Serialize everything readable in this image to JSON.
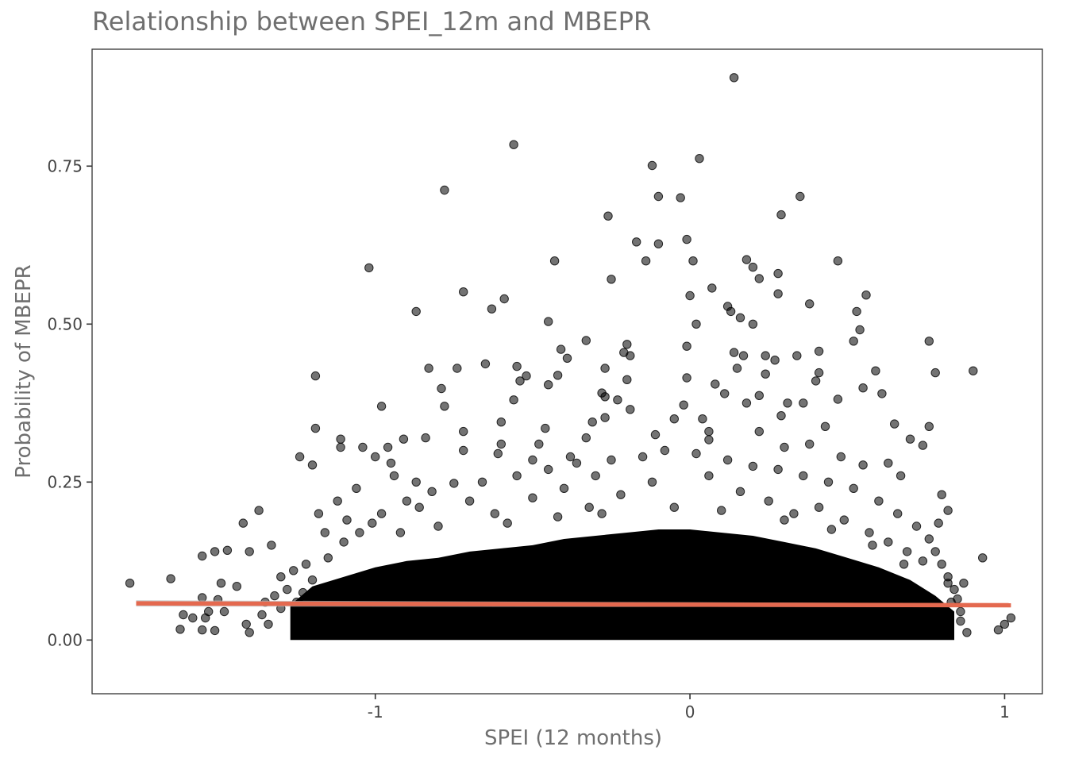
{
  "chart_data": {
    "type": "scatter",
    "title": "Relationship between SPEI_12m and MBEPR",
    "xlabel": "SPEI (12 months)",
    "ylabel": "Probability of MBEPR",
    "xlim": [
      -1.9,
      1.12
    ],
    "ylim": [
      -0.085,
      0.935
    ],
    "xticks": [
      {
        "value": -1,
        "label": "-1"
      },
      {
        "value": 0,
        "label": "0"
      },
      {
        "value": 1,
        "label": "1"
      }
    ],
    "yticks": [
      {
        "value": 0.0,
        "label": "0.00"
      },
      {
        "value": 0.25,
        "label": "0.25"
      },
      {
        "value": 0.5,
        "label": "0.50"
      },
      {
        "value": 0.75,
        "label": "0.75"
      }
    ],
    "grid": false,
    "legend": "none",
    "point_color": "#000000",
    "trend_color": "#e4694f",
    "dense_cloud": {
      "x": [
        -1.27,
        -1.2,
        -1.1,
        -1.0,
        -0.9,
        -0.8,
        -0.7,
        -0.6,
        -0.5,
        -0.4,
        -0.3,
        -0.2,
        -0.1,
        0.0,
        0.1,
        0.2,
        0.3,
        0.4,
        0.5,
        0.6,
        0.7,
        0.78,
        0.84
      ],
      "upper": [
        0.055,
        0.085,
        0.1,
        0.115,
        0.125,
        0.13,
        0.14,
        0.145,
        0.15,
        0.16,
        0.165,
        0.17,
        0.175,
        0.175,
        0.17,
        0.165,
        0.155,
        0.145,
        0.13,
        0.115,
        0.095,
        0.07,
        0.045
      ],
      "lower": 0.0
    },
    "trend": {
      "x": [
        -1.76,
        1.02
      ],
      "y": [
        0.058,
        0.055
      ],
      "ci_low": [
        0.053,
        0.052
      ],
      "ci_high": [
        0.063,
        0.058
      ]
    },
    "points": [
      {
        "x": 0.14,
        "y": 0.89
      },
      {
        "x": -0.56,
        "y": 0.784
      },
      {
        "x": 0.03,
        "y": 0.762
      },
      {
        "x": -0.12,
        "y": 0.751
      },
      {
        "x": -0.78,
        "y": 0.712
      },
      {
        "x": -0.1,
        "y": 0.702
      },
      {
        "x": -0.03,
        "y": 0.7
      },
      {
        "x": 0.35,
        "y": 0.702
      },
      {
        "x": 0.29,
        "y": 0.673
      },
      {
        "x": -0.26,
        "y": 0.671
      },
      {
        "x": -0.1,
        "y": 0.627
      },
      {
        "x": -0.17,
        "y": 0.63
      },
      {
        "x": -0.01,
        "y": 0.634
      },
      {
        "x": -0.43,
        "y": 0.6
      },
      {
        "x": -0.14,
        "y": 0.6
      },
      {
        "x": 0.01,
        "y": 0.6
      },
      {
        "x": 0.18,
        "y": 0.602
      },
      {
        "x": 0.47,
        "y": 0.6
      },
      {
        "x": 0.2,
        "y": 0.59
      },
      {
        "x": -1.02,
        "y": 0.589
      },
      {
        "x": -0.25,
        "y": 0.571
      },
      {
        "x": 0.28,
        "y": 0.58
      },
      {
        "x": 0.22,
        "y": 0.572
      },
      {
        "x": 0.07,
        "y": 0.557
      },
      {
        "x": -0.72,
        "y": 0.551
      },
      {
        "x": -0.59,
        "y": 0.54
      },
      {
        "x": 0.0,
        "y": 0.545
      },
      {
        "x": 0.56,
        "y": 0.546
      },
      {
        "x": 0.28,
        "y": 0.548
      },
      {
        "x": 0.12,
        "y": 0.528
      },
      {
        "x": -0.63,
        "y": 0.524
      },
      {
        "x": -0.87,
        "y": 0.52
      },
      {
        "x": 0.13,
        "y": 0.52
      },
      {
        "x": 0.53,
        "y": 0.52
      },
      {
        "x": 0.38,
        "y": 0.532
      },
      {
        "x": 0.16,
        "y": 0.51
      },
      {
        "x": -0.45,
        "y": 0.504
      },
      {
        "x": 0.02,
        "y": 0.5
      },
      {
        "x": 0.2,
        "y": 0.5
      },
      {
        "x": 0.54,
        "y": 0.491
      },
      {
        "x": -0.33,
        "y": 0.474
      },
      {
        "x": 0.52,
        "y": 0.473
      },
      {
        "x": 0.76,
        "y": 0.473
      },
      {
        "x": -0.01,
        "y": 0.465
      },
      {
        "x": -0.2,
        "y": 0.468
      },
      {
        "x": -0.41,
        "y": 0.46
      },
      {
        "x": -0.39,
        "y": 0.446
      },
      {
        "x": 0.14,
        "y": 0.455
      },
      {
        "x": 0.17,
        "y": 0.45
      },
      {
        "x": 0.24,
        "y": 0.45
      },
      {
        "x": 0.41,
        "y": 0.457
      },
      {
        "x": -0.21,
        "y": 0.455
      },
      {
        "x": -0.19,
        "y": 0.45
      },
      {
        "x": 0.27,
        "y": 0.443
      },
      {
        "x": 0.34,
        "y": 0.45
      },
      {
        "x": -0.65,
        "y": 0.437
      },
      {
        "x": -0.55,
        "y": 0.433
      },
      {
        "x": -0.83,
        "y": 0.43
      },
      {
        "x": -0.74,
        "y": 0.43
      },
      {
        "x": -0.27,
        "y": 0.43
      },
      {
        "x": 0.15,
        "y": 0.43
      },
      {
        "x": 0.59,
        "y": 0.426
      },
      {
        "x": 0.78,
        "y": 0.423
      },
      {
        "x": 0.9,
        "y": 0.426
      },
      {
        "x": -1.19,
        "y": 0.418
      },
      {
        "x": -0.52,
        "y": 0.418
      },
      {
        "x": -0.42,
        "y": 0.419
      },
      {
        "x": 0.41,
        "y": 0.423
      },
      {
        "x": -0.01,
        "y": 0.415
      },
      {
        "x": -0.2,
        "y": 0.412
      },
      {
        "x": 0.4,
        "y": 0.41
      },
      {
        "x": 0.24,
        "y": 0.421
      },
      {
        "x": -0.45,
        "y": 0.404
      },
      {
        "x": -0.54,
        "y": 0.41
      },
      {
        "x": -0.79,
        "y": 0.398
      },
      {
        "x": 0.08,
        "y": 0.405
      },
      {
        "x": 0.55,
        "y": 0.399
      },
      {
        "x": -0.28,
        "y": 0.391
      },
      {
        "x": -0.27,
        "y": 0.385
      },
      {
        "x": 0.11,
        "y": 0.39
      },
      {
        "x": 0.22,
        "y": 0.387
      },
      {
        "x": 0.61,
        "y": 0.39
      },
      {
        "x": -0.98,
        "y": 0.37
      },
      {
        "x": -0.78,
        "y": 0.37
      },
      {
        "x": -0.23,
        "y": 0.38
      },
      {
        "x": 0.18,
        "y": 0.375
      },
      {
        "x": 0.47,
        "y": 0.381
      },
      {
        "x": 0.31,
        "y": 0.375
      },
      {
        "x": -0.02,
        "y": 0.372
      },
      {
        "x": -0.19,
        "y": 0.365
      },
      {
        "x": -0.56,
        "y": 0.38
      },
      {
        "x": 0.36,
        "y": 0.375
      },
      {
        "x": -0.05,
        "y": 0.35
      },
      {
        "x": -0.27,
        "y": 0.352
      },
      {
        "x": 0.29,
        "y": 0.355
      },
      {
        "x": -0.31,
        "y": 0.345
      },
      {
        "x": -0.6,
        "y": 0.345
      },
      {
        "x": 0.04,
        "y": 0.35
      },
      {
        "x": 0.65,
        "y": 0.342
      },
      {
        "x": 0.76,
        "y": 0.338
      },
      {
        "x": -1.19,
        "y": 0.335
      },
      {
        "x": -0.72,
        "y": 0.33
      },
      {
        "x": -0.46,
        "y": 0.335
      },
      {
        "x": 0.43,
        "y": 0.338
      },
      {
        "x": -0.11,
        "y": 0.325
      },
      {
        "x": 0.06,
        "y": 0.33
      },
      {
        "x": 0.22,
        "y": 0.33
      },
      {
        "x": -0.84,
        "y": 0.32
      },
      {
        "x": -0.91,
        "y": 0.318
      },
      {
        "x": -1.11,
        "y": 0.318
      },
      {
        "x": -0.33,
        "y": 0.32
      },
      {
        "x": 0.7,
        "y": 0.318
      },
      {
        "x": 0.06,
        "y": 0.317
      },
      {
        "x": -0.6,
        "y": 0.31
      },
      {
        "x": -0.48,
        "y": 0.31
      },
      {
        "x": 0.38,
        "y": 0.31
      },
      {
        "x": 0.74,
        "y": 0.308
      },
      {
        "x": -1.04,
        "y": 0.305
      },
      {
        "x": -0.96,
        "y": 0.305
      },
      {
        "x": -1.11,
        "y": 0.305
      },
      {
        "x": -0.72,
        "y": 0.3
      },
      {
        "x": 0.3,
        "y": 0.305
      },
      {
        "x": -1.24,
        "y": 0.29
      },
      {
        "x": -1.0,
        "y": 0.29
      },
      {
        "x": -0.61,
        "y": 0.295
      },
      {
        "x": -0.38,
        "y": 0.29
      },
      {
        "x": 0.48,
        "y": 0.29
      },
      {
        "x": 0.63,
        "y": 0.28
      },
      {
        "x": -1.2,
        "y": 0.277
      },
      {
        "x": -0.95,
        "y": 0.28
      },
      {
        "x": -0.5,
        "y": 0.285
      },
      {
        "x": 0.55,
        "y": 0.277
      },
      {
        "x": 0.67,
        "y": 0.26
      },
      {
        "x": -0.87,
        "y": 0.25
      },
      {
        "x": -0.3,
        "y": 0.26
      },
      {
        "x": 0.8,
        "y": 0.23
      },
      {
        "x": -1.37,
        "y": 0.205
      },
      {
        "x": 0.82,
        "y": 0.205
      },
      {
        "x": -1.42,
        "y": 0.185
      },
      {
        "x": 0.79,
        "y": 0.185
      },
      {
        "x": -1.51,
        "y": 0.14
      },
      {
        "x": -1.47,
        "y": 0.142
      },
      {
        "x": -1.4,
        "y": 0.14
      },
      {
        "x": -1.33,
        "y": 0.15
      },
      {
        "x": 0.93,
        "y": 0.13
      },
      {
        "x": -1.55,
        "y": 0.133
      },
      {
        "x": -1.78,
        "y": 0.09
      },
      {
        "x": -1.65,
        "y": 0.097
      },
      {
        "x": -1.49,
        "y": 0.09
      },
      {
        "x": -1.44,
        "y": 0.085
      },
      {
        "x": 0.87,
        "y": 0.09
      },
      {
        "x": -1.55,
        "y": 0.067
      },
      {
        "x": -1.5,
        "y": 0.064
      },
      {
        "x": -1.53,
        "y": 0.045
      },
      {
        "x": -1.48,
        "y": 0.045
      },
      {
        "x": -1.54,
        "y": 0.035
      },
      {
        "x": -1.58,
        "y": 0.035
      },
      {
        "x": -1.61,
        "y": 0.04
      },
      {
        "x": -1.62,
        "y": 0.017
      },
      {
        "x": -1.55,
        "y": 0.016
      },
      {
        "x": -1.51,
        "y": 0.015
      },
      {
        "x": -1.41,
        "y": 0.025
      },
      {
        "x": -1.4,
        "y": 0.012
      },
      {
        "x": 0.83,
        "y": 0.06
      },
      {
        "x": 0.86,
        "y": 0.045
      },
      {
        "x": 0.88,
        "y": 0.012
      },
      {
        "x": 0.98,
        "y": 0.016
      },
      {
        "x": 1.0,
        "y": 0.025
      },
      {
        "x": 1.02,
        "y": 0.035
      },
      {
        "x": -1.23,
        "y": 0.075
      },
      {
        "x": -1.25,
        "y": 0.06
      },
      {
        "x": -1.3,
        "y": 0.05
      },
      {
        "x": -1.28,
        "y": 0.08
      },
      {
        "x": -1.3,
        "y": 0.1
      },
      {
        "x": -1.22,
        "y": 0.12
      },
      {
        "x": -1.15,
        "y": 0.13
      },
      {
        "x": -1.1,
        "y": 0.155
      },
      {
        "x": -1.05,
        "y": 0.17
      },
      {
        "x": -0.98,
        "y": 0.2
      },
      {
        "x": -0.9,
        "y": 0.22
      },
      {
        "x": -0.82,
        "y": 0.235
      },
      {
        "x": -0.75,
        "y": 0.248
      },
      {
        "x": -0.66,
        "y": 0.25
      },
      {
        "x": -0.55,
        "y": 0.26
      },
      {
        "x": -0.45,
        "y": 0.27
      },
      {
        "x": -0.36,
        "y": 0.28
      },
      {
        "x": -0.25,
        "y": 0.285
      },
      {
        "x": -0.15,
        "y": 0.29
      },
      {
        "x": -0.08,
        "y": 0.3
      },
      {
        "x": 0.02,
        "y": 0.295
      },
      {
        "x": 0.12,
        "y": 0.285
      },
      {
        "x": 0.2,
        "y": 0.275
      },
      {
        "x": 0.28,
        "y": 0.27
      },
      {
        "x": 0.36,
        "y": 0.26
      },
      {
        "x": 0.44,
        "y": 0.25
      },
      {
        "x": 0.52,
        "y": 0.24
      },
      {
        "x": 0.6,
        "y": 0.22
      },
      {
        "x": 0.66,
        "y": 0.2
      },
      {
        "x": 0.72,
        "y": 0.18
      },
      {
        "x": 0.76,
        "y": 0.16
      },
      {
        "x": 0.78,
        "y": 0.14
      },
      {
        "x": 0.8,
        "y": 0.12
      },
      {
        "x": 0.82,
        "y": 0.1
      },
      {
        "x": 0.84,
        "y": 0.08
      },
      {
        "x": -1.18,
        "y": 0.2
      },
      {
        "x": -1.12,
        "y": 0.22
      },
      {
        "x": -1.06,
        "y": 0.24
      },
      {
        "x": -0.94,
        "y": 0.26
      },
      {
        "x": -0.86,
        "y": 0.21
      },
      {
        "x": -0.7,
        "y": 0.22
      },
      {
        "x": -0.62,
        "y": 0.2
      },
      {
        "x": -0.5,
        "y": 0.225
      },
      {
        "x": -0.4,
        "y": 0.24
      },
      {
        "x": -0.32,
        "y": 0.21
      },
      {
        "x": -0.22,
        "y": 0.23
      },
      {
        "x": -0.12,
        "y": 0.25
      },
      {
        "x": 0.06,
        "y": 0.26
      },
      {
        "x": 0.16,
        "y": 0.235
      },
      {
        "x": 0.25,
        "y": 0.22
      },
      {
        "x": 0.33,
        "y": 0.2
      },
      {
        "x": 0.41,
        "y": 0.21
      },
      {
        "x": 0.49,
        "y": 0.19
      },
      {
        "x": 0.57,
        "y": 0.17
      },
      {
        "x": 0.63,
        "y": 0.155
      },
      {
        "x": 0.69,
        "y": 0.14
      },
      {
        "x": 0.74,
        "y": 0.125
      },
      {
        "x": -1.16,
        "y": 0.17
      },
      {
        "x": -1.09,
        "y": 0.19
      },
      {
        "x": -1.01,
        "y": 0.185
      },
      {
        "x": -0.92,
        "y": 0.17
      },
      {
        "x": -0.8,
        "y": 0.18
      },
      {
        "x": -0.58,
        "y": 0.185
      },
      {
        "x": -0.42,
        "y": 0.195
      },
      {
        "x": -0.28,
        "y": 0.2
      },
      {
        "x": -0.05,
        "y": 0.21
      },
      {
        "x": 0.1,
        "y": 0.205
      },
      {
        "x": 0.3,
        "y": 0.19
      },
      {
        "x": 0.45,
        "y": 0.175
      },
      {
        "x": 0.58,
        "y": 0.15
      },
      {
        "x": 0.68,
        "y": 0.12
      },
      {
        "x": -1.26,
        "y": 0.11
      },
      {
        "x": -1.2,
        "y": 0.095
      },
      {
        "x": -1.32,
        "y": 0.07
      },
      {
        "x": -1.35,
        "y": 0.06
      },
      {
        "x": -1.36,
        "y": 0.04
      },
      {
        "x": -1.34,
        "y": 0.025
      },
      {
        "x": 0.86,
        "y": 0.03
      },
      {
        "x": 0.85,
        "y": 0.065
      },
      {
        "x": 0.82,
        "y": 0.09
      }
    ]
  }
}
